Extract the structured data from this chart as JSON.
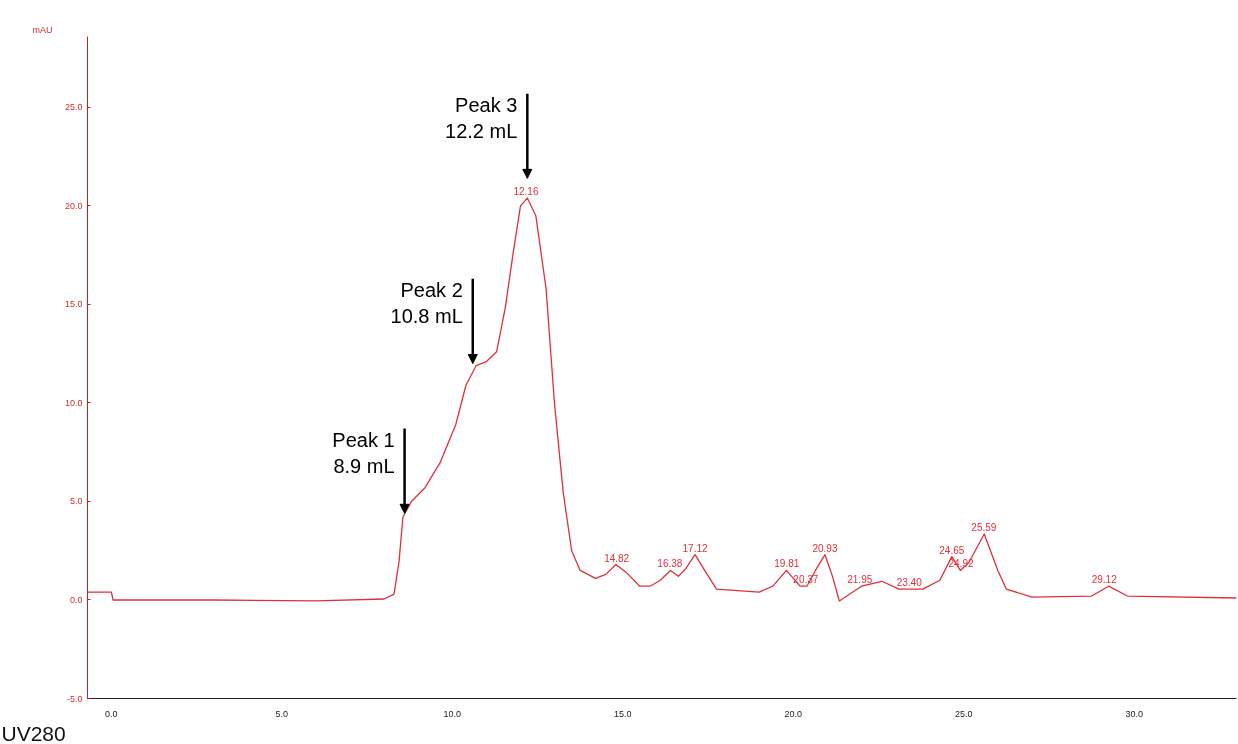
{
  "chart_data": {
    "type": "line",
    "ylabel": "mAU",
    "grid": false,
    "marker": "none",
    "line_style": "solid",
    "xlim": [
      -0.7,
      33.0
    ],
    "ylim": [
      -5.0,
      28.6
    ],
    "xticks": [
      {
        "value": 0,
        "label": "0.0"
      },
      {
        "value": 5,
        "label": "5.0"
      },
      {
        "value": 10,
        "label": "10.0"
      },
      {
        "value": 15,
        "label": "15.0"
      },
      {
        "value": 20,
        "label": "20.0"
      },
      {
        "value": 25,
        "label": "25.0"
      },
      {
        "value": 30,
        "label": "30.0"
      }
    ],
    "yticks": [
      {
        "value": -5,
        "label": "-5.0"
      },
      {
        "value": 0,
        "label": "0.0"
      },
      {
        "value": 5,
        "label": "5.0"
      },
      {
        "value": 10,
        "label": "10.0"
      },
      {
        "value": 15,
        "label": "15.0"
      },
      {
        "value": 20,
        "label": "20.0"
      },
      {
        "value": 25,
        "label": "25.0"
      }
    ],
    "series": [
      {
        "name": "UV280",
        "color": "#e0303a",
        "x": [
          -0.7,
          0.0,
          0.05,
          3.0,
          6.0,
          8.0,
          8.29,
          8.44,
          8.55,
          8.8,
          9.2,
          9.65,
          10.1,
          10.4,
          10.7,
          11.0,
          11.3,
          11.55,
          11.8,
          12.0,
          12.2,
          12.45,
          12.75,
          13.0,
          13.25,
          13.5,
          13.75,
          14.2,
          14.5,
          14.8,
          15.1,
          15.5,
          15.8,
          16.1,
          16.4,
          16.63,
          16.85,
          17.12,
          17.4,
          17.75,
          19.0,
          19.4,
          19.8,
          20.2,
          20.4,
          20.65,
          20.93,
          21.15,
          21.35,
          22.0,
          22.6,
          23.1,
          23.8,
          24.3,
          24.65,
          24.9,
          25.15,
          25.6,
          26.0,
          26.25,
          27.0,
          28.75,
          29.25,
          29.8,
          33.0
        ],
        "values": [
          0.4,
          0.4,
          0.0,
          0.0,
          -0.05,
          0.05,
          0.3,
          2.0,
          4.2,
          5.0,
          5.7,
          7.0,
          8.9,
          10.9,
          11.9,
          12.1,
          12.6,
          14.8,
          17.8,
          20.0,
          20.4,
          19.5,
          15.8,
          9.9,
          5.5,
          2.5,
          1.5,
          1.1,
          1.3,
          1.8,
          1.4,
          0.7,
          0.7,
          1.0,
          1.5,
          1.2,
          1.6,
          2.3,
          1.5,
          0.55,
          0.4,
          0.7,
          1.5,
          0.7,
          0.7,
          1.5,
          2.3,
          1.2,
          -0.05,
          0.7,
          0.95,
          0.55,
          0.55,
          1.0,
          2.2,
          1.5,
          1.9,
          3.35,
          1.5,
          0.55,
          0.15,
          0.2,
          0.7,
          0.2,
          0.1
        ]
      }
    ],
    "annotations": [
      {
        "text": "Peak 1\n8.9 mL",
        "x": 8.6,
        "y": 4.4
      },
      {
        "text": "Peak 2\n10.8 mL",
        "x": 10.6,
        "y": 12.0
      },
      {
        "text": "Peak 3\n12.2 mL",
        "x": 12.2,
        "y": 20.4
      },
      {
        "text": "12.16",
        "x": 12.16,
        "y": 20.4
      },
      {
        "text": "14.82",
        "x": 14.82,
        "y": 1.8
      },
      {
        "text": "16.38",
        "x": 16.38,
        "y": 1.5
      },
      {
        "text": "17.12",
        "x": 17.12,
        "y": 2.3
      },
      {
        "text": "19.81",
        "x": 19.81,
        "y": 1.5
      },
      {
        "text": "20.37",
        "x": 20.37,
        "y": 0.7
      },
      {
        "text": "20.93",
        "x": 20.93,
        "y": 2.3
      },
      {
        "text": "21.95",
        "x": 21.95,
        "y": 0.7
      },
      {
        "text": "23.40",
        "x": 23.4,
        "y": 0.55
      },
      {
        "text": "24.65",
        "x": 24.65,
        "y": 2.2
      },
      {
        "text": "24.92",
        "x": 24.92,
        "y": 1.5
      },
      {
        "text": "25.59",
        "x": 25.59,
        "y": 3.35
      },
      {
        "text": "29.12",
        "x": 29.12,
        "y": 0.7
      }
    ]
  }
}
